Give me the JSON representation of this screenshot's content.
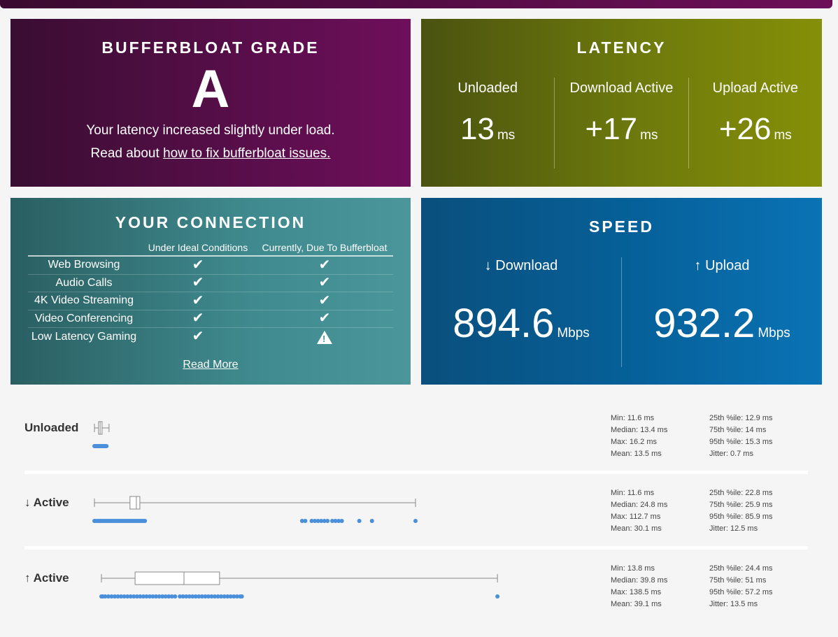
{
  "grade": {
    "title": "BUFFERBLOAT GRADE",
    "letter": "A",
    "line1": "Your latency increased slightly under load.",
    "line2_prefix": "Read about ",
    "line2_link": "how to fix bufferbloat issues."
  },
  "latency": {
    "title": "LATENCY",
    "unit": "ms",
    "columns": [
      {
        "label": "Unloaded",
        "value": "13"
      },
      {
        "label": "Download Active",
        "value": "+17"
      },
      {
        "label": "Upload Active",
        "value": "+26"
      }
    ]
  },
  "connection": {
    "title": "YOUR CONNECTION",
    "header_ideal": "Under Ideal Conditions",
    "header_current": "Currently, Due To Bufferbloat",
    "rows": [
      {
        "name": "Web Browsing",
        "ideal": "check",
        "current": "check"
      },
      {
        "name": "Audio Calls",
        "ideal": "check",
        "current": "check"
      },
      {
        "name": "4K Video Streaming",
        "ideal": "check",
        "current": "check"
      },
      {
        "name": "Video Conferencing",
        "ideal": "check",
        "current": "check"
      },
      {
        "name": "Low Latency Gaming",
        "ideal": "check",
        "current": "warning"
      }
    ],
    "read_more": "Read More"
  },
  "speed": {
    "title": "SPEED",
    "unit": "Mbps",
    "download_label": "↓ Download",
    "download_value": "894.6",
    "upload_label": "↑ Upload",
    "upload_value": "932.2"
  },
  "stats": [
    {
      "label": "Unloaded",
      "min": "Min: 11.6 ms",
      "median": "Median: 13.4 ms",
      "max": "Max: 16.2 ms",
      "mean": "Mean: 13.5 ms",
      "p25": "25th %ile: 12.9 ms",
      "p75": "75th %ile: 14 ms",
      "p95": "95th %ile: 15.3 ms",
      "jitter": "Jitter: 0.7 ms",
      "box": {
        "min": 11.6,
        "q1": 12.9,
        "median": 13.4,
        "q3": 14,
        "max": 16.2
      },
      "points": [
        11.6,
        11.9,
        12.2,
        12.5,
        12.8,
        13.0,
        13.2,
        13.4,
        13.6,
        13.8,
        14.0,
        14.2,
        14.5,
        14.8,
        15.1,
        15.4
      ]
    },
    {
      "label": "↓ Active",
      "min": "Min: 11.6 ms",
      "median": "Median: 24.8 ms",
      "max": "Max: 112.7 ms",
      "mean": "Mean: 30.1 ms",
      "p25": "25th %ile: 22.8 ms",
      "p75": "75th %ile: 25.9 ms",
      "p95": "95th %ile: 85.9 ms",
      "jitter": "Jitter: 12.5 ms",
      "box": {
        "min": 11.6,
        "q1": 22.8,
        "median": 24.8,
        "q3": 25.9,
        "max": 112.7
      },
      "points": [
        11.6,
        12.5,
        13.5,
        14.5,
        15.5,
        16.5,
        17.5,
        18.5,
        19.5,
        20.5,
        21.0,
        21.5,
        22.0,
        22.5,
        23.0,
        23.5,
        24.0,
        24.5,
        25.0,
        25.5,
        26.0,
        26.5,
        27.0,
        27.5,
        11.9,
        13.0,
        14.0,
        15.0,
        16.0,
        17.0,
        18.0,
        19.0,
        20.0,
        77.0,
        78.0,
        80.0,
        81.0,
        82.0,
        83.0,
        84.0,
        85.0,
        86.5,
        87.5,
        88.5,
        89.5,
        95.0,
        99.0,
        112.7
      ]
    },
    {
      "label": "↑ Active",
      "min": "Min: 13.8 ms",
      "median": "Median: 39.8 ms",
      "max": "Max: 138.5 ms",
      "mean": "Mean: 39.1 ms",
      "p25": "25th %ile: 24.4 ms",
      "p75": "75th %ile: 51 ms",
      "p95": "95th %ile: 57.2 ms",
      "jitter": "Jitter: 13.5 ms",
      "box": {
        "min": 13.8,
        "q1": 24.4,
        "median": 39.8,
        "q3": 51,
        "max": 138.5
      },
      "points": [
        13.8,
        14.3,
        15.0,
        16.0,
        17.0,
        18.0,
        19.0,
        20.0,
        21.0,
        22.0,
        23.0,
        24.0,
        25.0,
        26.0,
        27.0,
        28.0,
        29.0,
        30.0,
        31.0,
        32.0,
        33.0,
        34.0,
        35.0,
        36.0,
        37.0,
        38.5,
        39.5,
        40.5,
        41.5,
        42.5,
        43.5,
        44.5,
        45.5,
        46.5,
        47.5,
        48.5,
        49.5,
        50.5,
        51.5,
        52.5,
        53.5,
        54.5,
        55.5,
        56.5,
        57.5,
        58.0,
        138.5
      ]
    }
  ],
  "colors": {
    "point": "#4a8fdb",
    "box_stroke": "#888888"
  }
}
